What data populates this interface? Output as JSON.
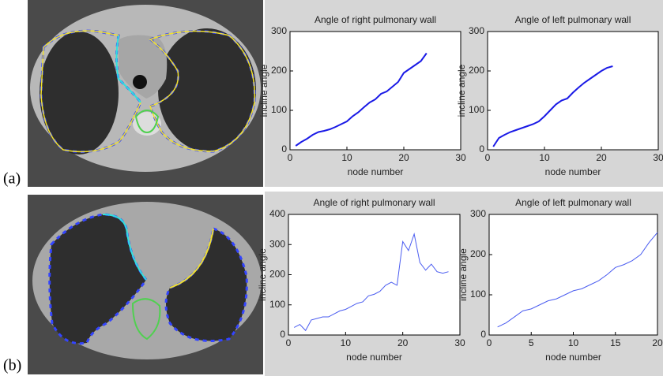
{
  "panels": [
    "(a)",
    "(b)"
  ],
  "chart_data": [
    {
      "type": "line",
      "title": "Angle of right pulmonary wall",
      "xlabel": "node number",
      "ylabel": "incline angle",
      "x": [
        1,
        2,
        3,
        4,
        5,
        6,
        7,
        8,
        9,
        10,
        11,
        12,
        13,
        14,
        15,
        16,
        17,
        18,
        19,
        20,
        21,
        22,
        23,
        24
      ],
      "values": [
        10,
        20,
        28,
        38,
        45,
        48,
        52,
        58,
        65,
        72,
        85,
        95,
        108,
        120,
        128,
        142,
        148,
        160,
        172,
        195,
        205,
        215,
        225,
        245
      ],
      "color": "#1a1ae6",
      "xlim": [
        0,
        30
      ],
      "xticks": [
        0,
        10,
        20,
        30
      ],
      "ylim": [
        0,
        300
      ],
      "yticks": [
        0,
        100,
        200,
        300
      ]
    },
    {
      "type": "line",
      "title": "Angle of left pulmonary wall",
      "xlabel": "node number",
      "ylabel": "incline angle",
      "x": [
        1,
        2,
        3,
        4,
        5,
        6,
        7,
        8,
        9,
        10,
        11,
        12,
        13,
        14,
        15,
        16,
        17,
        18,
        19,
        20,
        21,
        22
      ],
      "values": [
        8,
        30,
        38,
        45,
        50,
        55,
        60,
        65,
        72,
        85,
        100,
        115,
        125,
        130,
        145,
        158,
        170,
        180,
        190,
        200,
        208,
        212
      ],
      "color": "#1a1ae6",
      "xlim": [
        0,
        30
      ],
      "xticks": [
        0,
        10,
        20,
        30
      ],
      "ylim": [
        0,
        300
      ],
      "yticks": [
        0,
        100,
        200,
        300
      ]
    },
    {
      "type": "line",
      "title": "Angle of right pulmonary wall",
      "xlabel": "node number",
      "ylabel": "incline angle",
      "x": [
        1,
        2,
        3,
        4,
        5,
        6,
        7,
        8,
        9,
        10,
        11,
        12,
        13,
        14,
        15,
        16,
        17,
        18,
        19,
        20,
        21,
        22,
        23,
        24,
        25,
        26,
        27,
        28
      ],
      "values": [
        25,
        35,
        15,
        50,
        55,
        60,
        60,
        70,
        80,
        85,
        95,
        105,
        110,
        130,
        135,
        145,
        165,
        175,
        165,
        310,
        280,
        335,
        240,
        215,
        235,
        210,
        205,
        210
      ],
      "color": "#4a5cf0",
      "xlim": [
        0,
        30
      ],
      "xticks": [
        0,
        10,
        20,
        30
      ],
      "ylim": [
        0,
        400
      ],
      "yticks": [
        0,
        100,
        200,
        300,
        400
      ]
    },
    {
      "type": "line",
      "title": "Angle of left pulmonary wall",
      "xlabel": "node number",
      "ylabel": "incline angle",
      "x": [
        1,
        2,
        3,
        4,
        5,
        6,
        7,
        8,
        9,
        10,
        11,
        12,
        13,
        14,
        15,
        16,
        17,
        18,
        19,
        20
      ],
      "values": [
        20,
        30,
        45,
        60,
        65,
        75,
        85,
        90,
        100,
        110,
        115,
        125,
        135,
        150,
        168,
        175,
        185,
        200,
        230,
        255
      ],
      "color": "#4a5cf0",
      "xlim": [
        0,
        20
      ],
      "xticks": [
        0,
        5,
        10,
        15,
        20
      ],
      "ylim": [
        0,
        300
      ],
      "yticks": [
        0,
        100,
        200,
        300
      ]
    }
  ]
}
